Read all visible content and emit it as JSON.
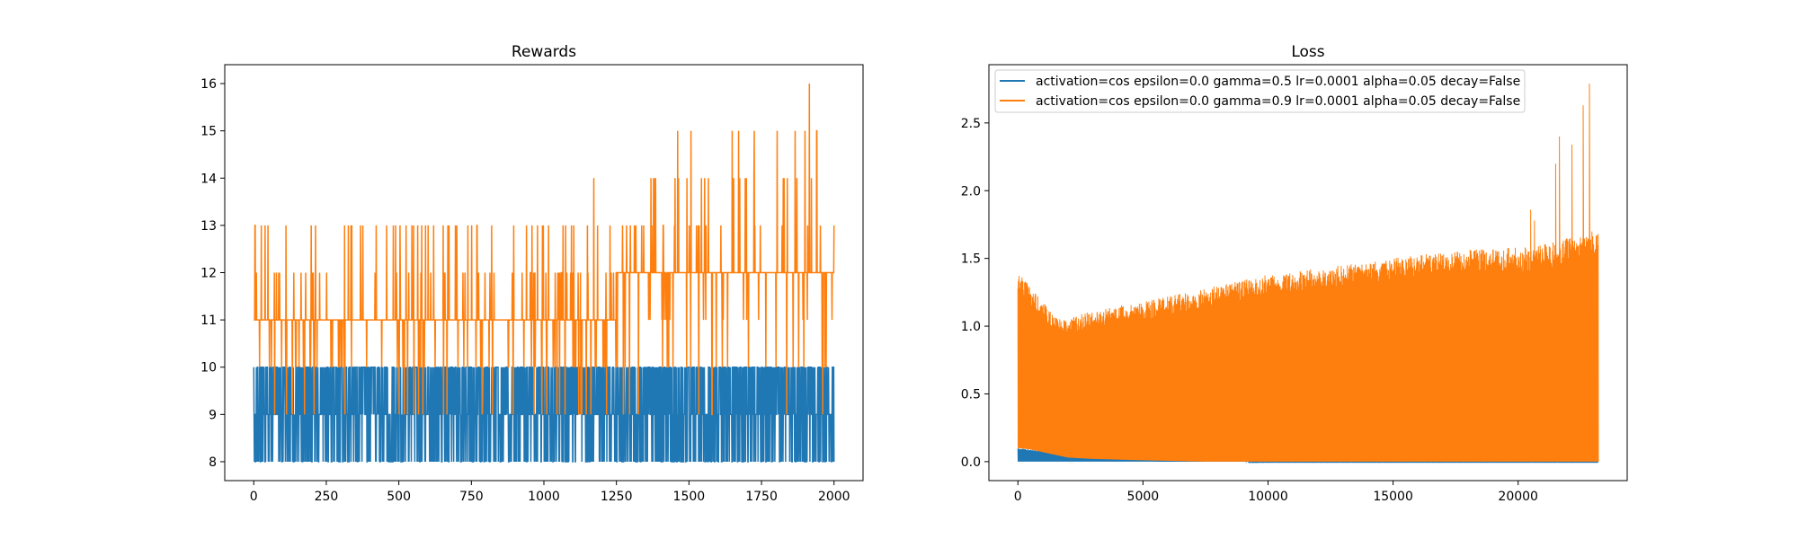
{
  "chart_data": [
    {
      "type": "line",
      "title": "Rewards",
      "xlabel": "",
      "ylabel": "",
      "xlim": [
        -100,
        2100
      ],
      "ylim": [
        7.6,
        16.4
      ],
      "xticks": [
        0,
        250,
        500,
        750,
        1000,
        1250,
        1500,
        1750,
        2000
      ],
      "xtick_labels": [
        "0",
        "250",
        "500",
        "750",
        "1000",
        "1250",
        "1500",
        "1750",
        "2000"
      ],
      "yticks": [
        8,
        9,
        10,
        11,
        12,
        13,
        14,
        15,
        16
      ],
      "ytick_labels": [
        "8",
        "9",
        "10",
        "11",
        "12",
        "13",
        "14",
        "15",
        "16"
      ],
      "grid": false,
      "series": [
        {
          "color": "#1f77b4",
          "x": [
            0,
            250,
            500,
            750,
            1000,
            1250,
            1500,
            1750,
            2000
          ],
          "base": [
            9,
            9,
            9,
            9,
            9,
            9,
            9,
            9,
            9
          ],
          "low": [
            8,
            8,
            8,
            8,
            8,
            8,
            8,
            8,
            8
          ],
          "high": [
            10,
            10,
            10,
            10,
            10,
            10,
            10,
            10,
            10
          ],
          "low_frequency": 0.25,
          "high_frequency": 0.4
        },
        {
          "color": "#ff7f0e",
          "x": [
            0,
            250,
            500,
            750,
            1000,
            1250,
            1500,
            1750,
            2000
          ],
          "base": [
            11,
            11,
            11,
            11,
            11,
            11.5,
            12,
            12,
            12
          ],
          "low": [
            9,
            9,
            9,
            9,
            9,
            9,
            9,
            9,
            9
          ],
          "high": [
            13,
            13,
            13,
            13,
            13,
            14,
            15,
            15,
            16
          ],
          "low_frequency": 0.08,
          "high_frequency": 0.1
        }
      ]
    },
    {
      "type": "line",
      "title": "Loss",
      "xlabel": "",
      "ylabel": "",
      "xlim": [
        -1160,
        24360
      ],
      "ylim": [
        -0.14,
        2.93
      ],
      "xticks": [
        0,
        5000,
        10000,
        15000,
        20000
      ],
      "xtick_labels": [
        "0",
        "5000",
        "10000",
        "15000",
        "20000"
      ],
      "yticks": [
        0.0,
        0.5,
        1.0,
        1.5,
        2.0,
        2.5
      ],
      "ytick_labels": [
        "0.0",
        "0.5",
        "1.0",
        "1.5",
        "2.0",
        "2.5"
      ],
      "grid": false,
      "legend_location": "upper left",
      "series": [
        {
          "name": "activation=cos epsilon=0.0 gamma=0.5 lr=0.0001 alpha=0.05 decay=False",
          "color": "#1f77b4",
          "x": [
            0,
            1000,
            2000,
            3000,
            4000,
            5000,
            7000,
            10000,
            15000,
            20000,
            23200
          ],
          "max": [
            0.1,
            0.08,
            0.06,
            0.04,
            0.03,
            0.02,
            0.01,
            0.005,
            0.005,
            0.005,
            0.005
          ],
          "min": [
            0,
            0,
            0,
            0,
            0,
            0,
            0,
            0,
            0,
            0,
            0
          ]
        },
        {
          "name": "activation=cos epsilon=0.0 gamma=0.9 lr=0.0001 alpha=0.05 decay=False",
          "color": "#ff7f0e",
          "x": [
            0,
            500,
            1000,
            1500,
            2000,
            3000,
            5000,
            7500,
            10000,
            12500,
            15000,
            17500,
            20000,
            21000,
            22000,
            23200
          ],
          "max": [
            1.43,
            1.28,
            1.18,
            1.06,
            1.05,
            1.12,
            1.18,
            1.28,
            1.38,
            1.44,
            1.5,
            1.56,
            1.58,
            1.6,
            1.65,
            1.72
          ],
          "min": [
            0.1,
            0.09,
            0.07,
            0.05,
            0.03,
            0.02,
            0.01,
            0,
            0,
            0,
            0,
            0,
            0,
            0,
            0,
            0
          ],
          "spikes": [
            [
              20500,
              1.86
            ],
            [
              20650,
              1.78
            ],
            [
              21500,
              2.2
            ],
            [
              21650,
              2.4
            ],
            [
              22150,
              2.34
            ],
            [
              22600,
              2.63
            ],
            [
              22850,
              2.79
            ]
          ]
        }
      ]
    }
  ]
}
